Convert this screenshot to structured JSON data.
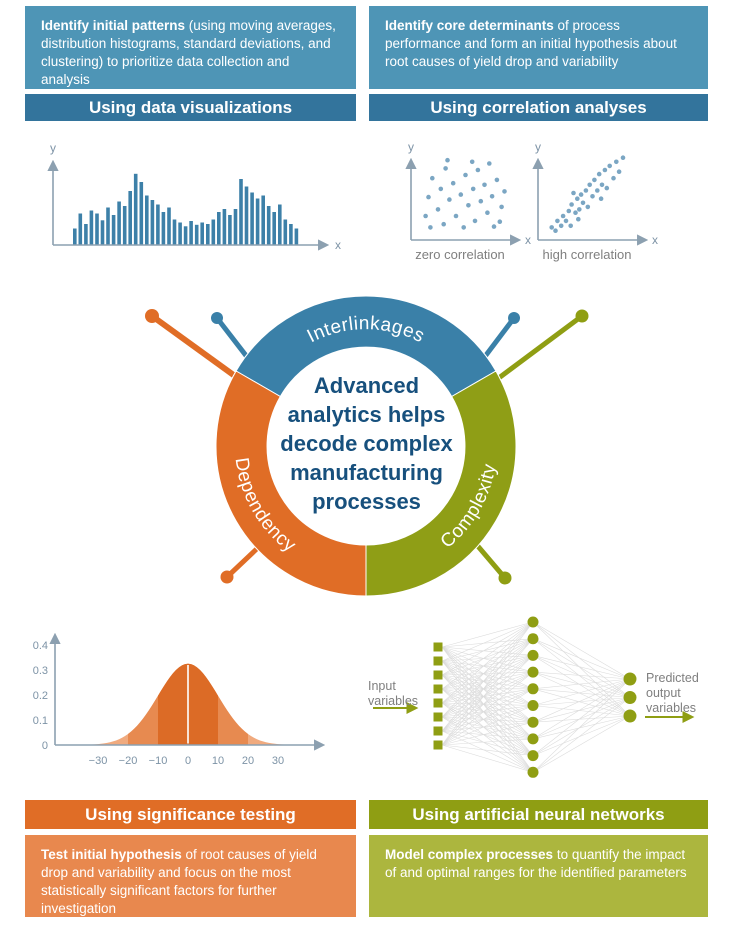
{
  "palette": {
    "teal_light": "#4E95B6",
    "teal_dark": "#33749C",
    "blue": "#3A80A8",
    "orange": "#E06D26",
    "orange_light": "#E8884E",
    "olive": "#8F9E13",
    "olive_light": "#ACB63E",
    "navy": "#17507D",
    "axis": "#8CA0B0",
    "tick_text": "#7D93A6",
    "gray_text": "#7F7F7F",
    "dot_blue": "#7BA6C3",
    "bar_blue": "#3D80A8",
    "nn_line": "#DCDCDC",
    "bell_dark": "#DC6B26",
    "bell_mid": "#E78A50",
    "bell_light": "#F0AA7E"
  },
  "panels": {
    "top_left": {
      "body_bold": "Identify initial patterns",
      "body_rest": " (using moving averages, distribution histograms, standard deviations, and clustering) to prioritize data collection and analysis",
      "header": "Using data visualizations"
    },
    "top_right": {
      "body_bold": "Identify core determinants",
      "body_rest": " of process performance and form an initial hypothesis about root causes of yield drop and variability",
      "header": "Using correlation analyses"
    },
    "bottom_left": {
      "header": "Using significance testing",
      "body_bold": "Test initial hypothesis",
      "body_rest": " of root causes of yield drop and variability and focus on the most statistically significant factors for further investigation"
    },
    "bottom_right": {
      "header": "Using artificial neural networks",
      "body_bold": "Model complex processes",
      "body_rest": " to quantify the impact of and optimal ranges for the identified parameters"
    }
  },
  "donut": {
    "center_text": "Advanced analytics helps decode complex manufacturing processes",
    "segments": [
      {
        "label": "Interlinkages",
        "color": "#3A80A8"
      },
      {
        "label": "Dependency",
        "color": "#E06D26"
      },
      {
        "label": "Complexity",
        "color": "#8F9E16"
      }
    ]
  },
  "chart_data": [
    {
      "type": "bar",
      "id": "histogram",
      "xlabel": "x",
      "ylabel": "y",
      "values": [
        22,
        42,
        28,
        46,
        42,
        33,
        50,
        40,
        58,
        52,
        72,
        95,
        84,
        66,
        60,
        54,
        44,
        50,
        34,
        30,
        25,
        32,
        27,
        30,
        28,
        34,
        44,
        48,
        40,
        48,
        88,
        78,
        70,
        62,
        66,
        52,
        44,
        54,
        34,
        28,
        22
      ]
    },
    {
      "type": "scatter",
      "id": "scatter-zero",
      "caption": "zero correlation",
      "xlabel": "x",
      "ylabel": "y",
      "points": [
        [
          7,
          22
        ],
        [
          10,
          45
        ],
        [
          14,
          68
        ],
        [
          20,
          30
        ],
        [
          23,
          55
        ],
        [
          26,
          12
        ],
        [
          28,
          80
        ],
        [
          32,
          42
        ],
        [
          36,
          62
        ],
        [
          39,
          22
        ],
        [
          44,
          48
        ],
        [
          47,
          8
        ],
        [
          49,
          72
        ],
        [
          52,
          35
        ],
        [
          57,
          55
        ],
        [
          59,
          16
        ],
        [
          62,
          78
        ],
        [
          65,
          40
        ],
        [
          69,
          60
        ],
        [
          72,
          26
        ],
        [
          77,
          46
        ],
        [
          79,
          9
        ],
        [
          82,
          66
        ],
        [
          87,
          33
        ],
        [
          90,
          52
        ],
        [
          30,
          90
        ],
        [
          56,
          88
        ],
        [
          74,
          86
        ],
        [
          12,
          8
        ],
        [
          85,
          15
        ]
      ]
    },
    {
      "type": "scatter",
      "id": "scatter-high",
      "caption": "high correlation",
      "xlabel": "x",
      "ylabel": "y",
      "points": [
        [
          6,
          8
        ],
        [
          10,
          4
        ],
        [
          12,
          16
        ],
        [
          16,
          10
        ],
        [
          18,
          22
        ],
        [
          21,
          16
        ],
        [
          24,
          28
        ],
        [
          26,
          10
        ],
        [
          27,
          36
        ],
        [
          31,
          26
        ],
        [
          33,
          43
        ],
        [
          35,
          30
        ],
        [
          37,
          48
        ],
        [
          39,
          38
        ],
        [
          42,
          53
        ],
        [
          44,
          33
        ],
        [
          46,
          60
        ],
        [
          49,
          46
        ],
        [
          51,
          66
        ],
        [
          54,
          53
        ],
        [
          56,
          73
        ],
        [
          59,
          60
        ],
        [
          62,
          78
        ],
        [
          64,
          56
        ],
        [
          67,
          83
        ],
        [
          71,
          68
        ],
        [
          74,
          88
        ],
        [
          77,
          76
        ],
        [
          81,
          93
        ],
        [
          58,
          43
        ],
        [
          34,
          18
        ],
        [
          29,
          50
        ]
      ]
    },
    {
      "type": "area",
      "id": "bell-curve",
      "sigma": 10,
      "peak": 0.325,
      "bands": {
        "inner": 10,
        "outer": 20
      },
      "y_ticks": [
        0,
        0.1,
        0.2,
        0.3,
        0.4
      ],
      "x_ticks": [
        -30,
        -20,
        -10,
        0,
        10,
        20,
        30
      ]
    },
    {
      "type": "diagram",
      "id": "neural-network",
      "input_count": 8,
      "hidden_count": 10,
      "output_count": 3,
      "input_label": "Input variables",
      "output_label": "Predicted output variables"
    }
  ]
}
